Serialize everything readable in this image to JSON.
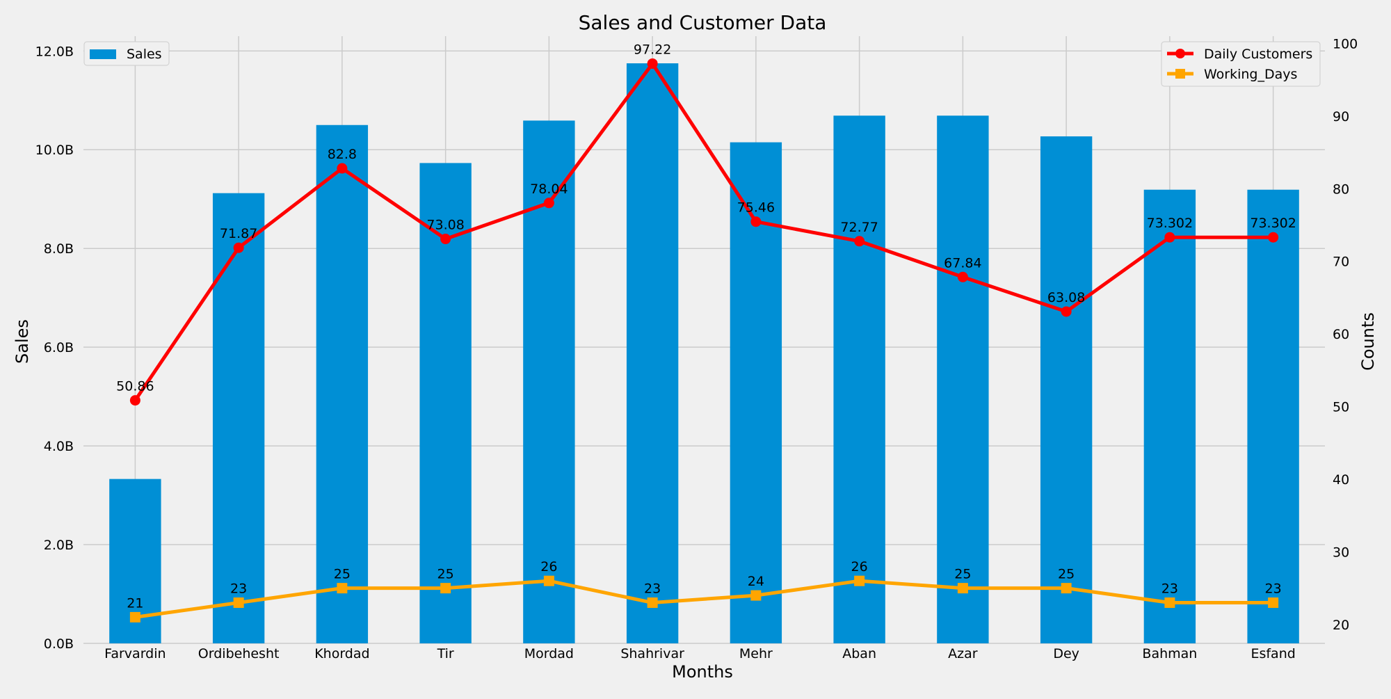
{
  "chart_data": {
    "type": "bar",
    "title": "Sales and Customer Data",
    "xlabel": "Months",
    "ylabel": "Sales",
    "y2label": "Counts",
    "categories": [
      "Farvardin",
      "Ordibehesht",
      "Khordad",
      "Tir",
      "Mordad",
      "Shahrivar",
      "Mehr",
      "Aban",
      "Azar",
      "Dey",
      "Bahman",
      "Esfand"
    ],
    "ylim": [
      0,
      12300000000
    ],
    "y2lim": [
      17.4,
      101
    ],
    "yticks": [
      0,
      2000000000,
      4000000000,
      6000000000,
      8000000000,
      10000000000,
      12000000000
    ],
    "ytick_labels": [
      "0.0B",
      "2.0B",
      "4.0B",
      "6.0B",
      "8.0B",
      "10.0B",
      "12.0B"
    ],
    "y2ticks": [
      20,
      30,
      40,
      50,
      60,
      70,
      80,
      90,
      100
    ],
    "y2tick_labels": [
      "20",
      "30",
      "40",
      "50",
      "60",
      "70",
      "80",
      "90",
      "100"
    ],
    "grid": true,
    "bar_series": {
      "name": "Sales",
      "color": "#008fd5",
      "values": [
        3330000000,
        9120000000,
        10500000000,
        9730000000,
        10590000000,
        11750000000,
        10150000000,
        10690000000,
        10690000000,
        10270000000,
        9190000000,
        9190000000
      ]
    },
    "line_series": [
      {
        "name": "Daily Customers",
        "color": "#ff0000",
        "marker": "circle",
        "values": [
          50.86,
          71.87,
          82.8,
          73.08,
          78.04,
          97.22,
          75.46,
          72.77,
          67.84,
          63.08,
          73.302,
          73.302
        ],
        "labels": [
          "50.86",
          "71.87",
          "82.8",
          "73.08",
          "78.04",
          "97.22",
          "75.46",
          "72.77",
          "67.84",
          "63.08",
          "73.302",
          "73.302"
        ]
      },
      {
        "name": "Working_Days",
        "color": "#ffa500",
        "marker": "square",
        "values": [
          21,
          23,
          25,
          25,
          26,
          23,
          24,
          26,
          25,
          25,
          23,
          23
        ],
        "labels": [
          "21",
          "23",
          "25",
          "25",
          "26",
          "23",
          "24",
          "26",
          "25",
          "25",
          "23",
          "23"
        ]
      }
    ],
    "legend_left": {
      "placement": "top-left"
    },
    "legend_right": {
      "placement": "top-right"
    }
  }
}
